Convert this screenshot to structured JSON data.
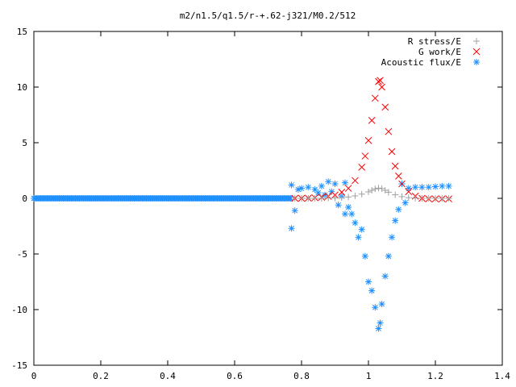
{
  "chart_data": {
    "type": "scatter",
    "title": "m2/n1.5/q1.5/r-+.62-j321/M0.2/512",
    "xlabel": "",
    "ylabel": "",
    "xlim": [
      0,
      1.4
    ],
    "ylim": [
      -15,
      15
    ],
    "x_ticks": [
      "0",
      "0.2",
      "0.4",
      "0.6",
      "0.8",
      "1",
      "1.2",
      "1.4"
    ],
    "y_ticks": [
      "-15",
      "-10",
      "-5",
      "0",
      "5",
      "10",
      "15"
    ],
    "grid": false,
    "legend_position": "top-right",
    "series": [
      {
        "name": "R stress/E",
        "marker": "plus",
        "color": "#a0a0a0",
        "points": [
          [
            0.78,
            0.0
          ],
          [
            0.8,
            0.0
          ],
          [
            0.82,
            0.0
          ],
          [
            0.84,
            0.0
          ],
          [
            0.86,
            0.0
          ],
          [
            0.88,
            0.02
          ],
          [
            0.9,
            0.03
          ],
          [
            0.92,
            0.06
          ],
          [
            0.94,
            0.12
          ],
          [
            0.96,
            0.22
          ],
          [
            0.98,
            0.38
          ],
          [
            1.0,
            0.58
          ],
          [
            1.01,
            0.72
          ],
          [
            1.02,
            0.85
          ],
          [
            1.03,
            0.92
          ],
          [
            1.04,
            0.88
          ],
          [
            1.05,
            0.72
          ],
          [
            1.06,
            0.55
          ],
          [
            1.08,
            0.32
          ],
          [
            1.1,
            0.15
          ],
          [
            1.12,
            0.06
          ],
          [
            1.14,
            0.02
          ],
          [
            1.16,
            0.0
          ],
          [
            1.18,
            0.0
          ],
          [
            1.2,
            0.0
          ],
          [
            1.22,
            0.0
          ],
          [
            1.24,
            0.0
          ]
        ]
      },
      {
        "name": "G work/E",
        "marker": "cross",
        "color": "#ff0000",
        "points": [
          [
            0.78,
            0.0
          ],
          [
            0.8,
            0.0
          ],
          [
            0.82,
            0.02
          ],
          [
            0.84,
            0.05
          ],
          [
            0.86,
            0.1
          ],
          [
            0.88,
            0.18
          ],
          [
            0.9,
            0.3
          ],
          [
            0.92,
            0.55
          ],
          [
            0.94,
            0.9
          ],
          [
            0.96,
            1.6
          ],
          [
            0.98,
            2.8
          ],
          [
            0.99,
            3.8
          ],
          [
            1.0,
            5.2
          ],
          [
            1.01,
            7.0
          ],
          [
            1.02,
            9.0
          ],
          [
            1.03,
            10.5
          ],
          [
            1.035,
            10.6
          ],
          [
            1.04,
            10.0
          ],
          [
            1.05,
            8.2
          ],
          [
            1.06,
            6.0
          ],
          [
            1.07,
            4.2
          ],
          [
            1.08,
            2.9
          ],
          [
            1.09,
            2.0
          ],
          [
            1.1,
            1.3
          ],
          [
            1.12,
            0.6
          ],
          [
            1.14,
            0.2
          ],
          [
            1.16,
            0.0
          ],
          [
            1.18,
            -0.05
          ],
          [
            1.2,
            -0.05
          ],
          [
            1.22,
            -0.05
          ],
          [
            1.24,
            -0.05
          ]
        ]
      },
      {
        "name": "Acoustic flux/E",
        "marker": "star",
        "color": "#1e90ff",
        "points": [
          [
            0.77,
            1.2
          ],
          [
            0.77,
            -2.7
          ],
          [
            0.78,
            -1.1
          ],
          [
            0.79,
            0.8
          ],
          [
            0.8,
            0.9
          ],
          [
            0.82,
            1.0
          ],
          [
            0.84,
            0.8
          ],
          [
            0.85,
            0.5
          ],
          [
            0.86,
            1.1
          ],
          [
            0.87,
            0.3
          ],
          [
            0.88,
            1.5
          ],
          [
            0.89,
            0.6
          ],
          [
            0.9,
            1.3
          ],
          [
            0.91,
            -0.6
          ],
          [
            0.92,
            0.2
          ],
          [
            0.93,
            1.4
          ],
          [
            0.93,
            -1.4
          ],
          [
            0.94,
            -0.8
          ],
          [
            0.95,
            -1.4
          ],
          [
            0.96,
            -2.2
          ],
          [
            0.97,
            -3.5
          ],
          [
            0.98,
            -2.8
          ],
          [
            0.99,
            -5.2
          ],
          [
            1.0,
            -7.5
          ],
          [
            1.01,
            -8.3
          ],
          [
            1.02,
            -9.8
          ],
          [
            1.03,
            -11.7
          ],
          [
            1.035,
            -11.2
          ],
          [
            1.04,
            -9.5
          ],
          [
            1.05,
            -7.0
          ],
          [
            1.06,
            -5.2
          ],
          [
            1.07,
            -3.5
          ],
          [
            1.08,
            -2.0
          ],
          [
            1.09,
            -1.0
          ],
          [
            1.1,
            1.3
          ],
          [
            1.11,
            -0.4
          ],
          [
            1.12,
            0.9
          ],
          [
            1.14,
            1.0
          ],
          [
            1.16,
            1.0
          ],
          [
            1.18,
            1.0
          ],
          [
            1.2,
            1.05
          ],
          [
            1.22,
            1.1
          ],
          [
            1.24,
            1.1
          ]
        ]
      }
    ]
  }
}
